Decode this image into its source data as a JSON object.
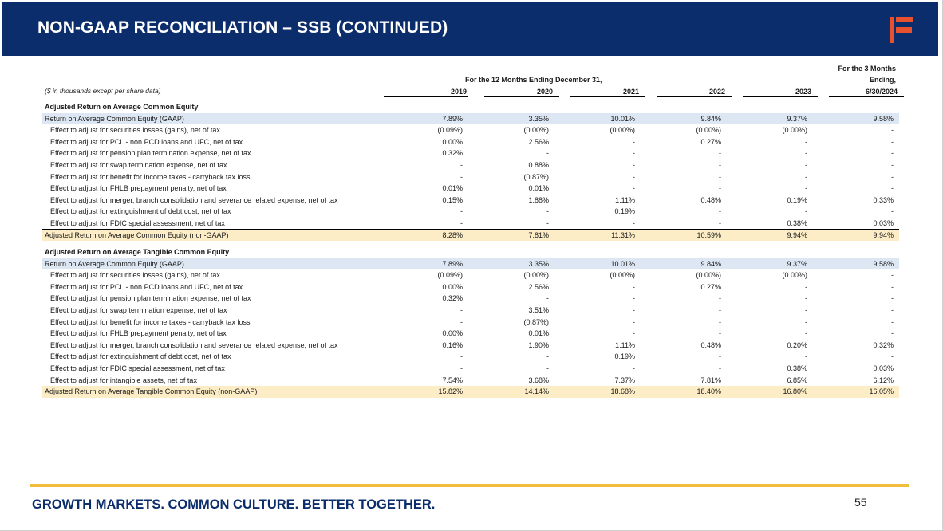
{
  "header": {
    "title": "NON-GAAP RECONCILIATION – SSB (CONTINUED)",
    "logo": "ssb-logo-icon",
    "accent": "#e8512d",
    "bar_color": "#0c2d6b"
  },
  "table": {
    "note": "($ in thousands except per share data)",
    "period_header": "For the 12 Months Ending December 31,",
    "ytd_header_1": "For the 3 Months",
    "ytd_header_2": "Ending,",
    "columns": [
      "2019",
      "2020",
      "2021",
      "2022",
      "2023",
      "6/30/2024"
    ],
    "sections": [
      {
        "title": "Adjusted Return on Average Common Equity",
        "rows": [
          {
            "label": "Return on Average Common Equity (GAAP)",
            "values": [
              "7.89%",
              "3.35%",
              "10.01%",
              "9.84%",
              "9.37%",
              "9.58%"
            ]
          },
          {
            "label": "Effect to adjust for securities losses (gains), net of tax",
            "values": [
              "(0.09%)",
              "(0.00%)",
              "(0.00%)",
              "(0.00%)",
              "(0.00%)",
              "-"
            ]
          },
          {
            "label": "Effect to adjust for PCL - non PCD loans and UFC, net of tax",
            "values": [
              "0.00%",
              "2.56%",
              "-",
              "0.27%",
              "-",
              "-"
            ]
          },
          {
            "label": "Effect to adjust for pension plan termination expense, net of tax",
            "values": [
              "0.32%",
              "-",
              "-",
              "-",
              "-",
              "-"
            ]
          },
          {
            "label": "Effect to adjust for swap termination expense, net of tax",
            "values": [
              "-",
              "0.88%",
              "-",
              "-",
              "-",
              "-"
            ]
          },
          {
            "label": "Effect to adjust for benefit for income taxes - carryback tax loss",
            "values": [
              "-",
              "(0.87%)",
              "-",
              "-",
              "-",
              "-"
            ]
          },
          {
            "label": "Effect to adjust for FHLB prepayment penalty, net of tax",
            "values": [
              "0.01%",
              "0.01%",
              "-",
              "-",
              "-",
              "-"
            ]
          },
          {
            "label": "Effect to adjust for merger, branch consolidation and severance related expense, net of tax",
            "values": [
              "0.15%",
              "1.88%",
              "1.11%",
              "0.48%",
              "0.19%",
              "0.33%"
            ]
          },
          {
            "label": "Effect to adjust for extinguishment of debt cost, net of tax",
            "values": [
              "-",
              "-",
              "0.19%",
              "-",
              "-",
              "-"
            ]
          },
          {
            "label": "Effect to adjust for FDIC special assessment, net of tax",
            "values": [
              "-",
              "-",
              "-",
              "-",
              "0.38%",
              "0.03%"
            ]
          }
        ],
        "total": {
          "label": "Adjusted Return on Average Common Equity (non-GAAP)",
          "values": [
            "8.28%",
            "7.81%",
            "11.31%",
            "10.59%",
            "9.94%",
            "9.94%"
          ]
        }
      },
      {
        "title": "Adjusted Return on Average Tangible Common Equity",
        "rows": [
          {
            "label": "Return on Average Common Equity (GAAP)",
            "values": [
              "7.89%",
              "3.35%",
              "10.01%",
              "9.84%",
              "9.37%",
              "9.58%"
            ]
          },
          {
            "label": "Effect to adjust for securities losses (gains), net of tax",
            "values": [
              "(0.09%)",
              "(0.00%)",
              "(0.00%)",
              "(0.00%)",
              "(0.00%)",
              "-"
            ]
          },
          {
            "label": "Effect to adjust for PCL - non PCD loans and UFC, net of tax",
            "values": [
              "0.00%",
              "2.56%",
              "-",
              "0.27%",
              "-",
              "-"
            ]
          },
          {
            "label": "Effect to adjust for pension plan termination expense, net of tax",
            "values": [
              "0.32%",
              "-",
              "-",
              "-",
              "-",
              "-"
            ]
          },
          {
            "label": "Effect to adjust for swap termination expense, net of tax",
            "values": [
              "-",
              "3.51%",
              "-",
              "-",
              "-",
              "-"
            ]
          },
          {
            "label": "Effect to adjust for benefit for income taxes - carryback tax loss",
            "values": [
              "-",
              "(0.87%)",
              "-",
              "-",
              "-",
              "-"
            ]
          },
          {
            "label": "Effect to adjust for FHLB prepayment penalty, net of tax",
            "values": [
              "0.00%",
              "0.01%",
              "-",
              "-",
              "-",
              "-"
            ]
          },
          {
            "label": "Effect to adjust for merger, branch consolidation and severance related expense, net of tax",
            "values": [
              "0.16%",
              "1.90%",
              "1.11%",
              "0.48%",
              "0.20%",
              "0.32%"
            ]
          },
          {
            "label": "Effect to adjust for extinguishment of debt cost, net of tax",
            "values": [
              "-",
              "-",
              "0.19%",
              "-",
              "-",
              "-"
            ]
          },
          {
            "label": "Effect to adjust for FDIC special assessment, net of tax",
            "values": [
              "-",
              "-",
              "-",
              "-",
              "0.38%",
              "0.03%"
            ]
          },
          {
            "label": "Effect to adjust for intangible assets, net of tax",
            "values": [
              "7.54%",
              "3.68%",
              "7.37%",
              "7.81%",
              "6.85%",
              "6.12%"
            ]
          }
        ],
        "total": {
          "label": "Adjusted Return on Average Tangible Common Equity (non-GAAP)",
          "values": [
            "15.82%",
            "14.14%",
            "18.68%",
            "18.40%",
            "16.80%",
            "16.05%"
          ]
        }
      }
    ]
  },
  "footer": {
    "tagline": "GROWTH MARKETS. COMMON CULTURE. BETTER TOGETHER.",
    "page_number": "55"
  }
}
